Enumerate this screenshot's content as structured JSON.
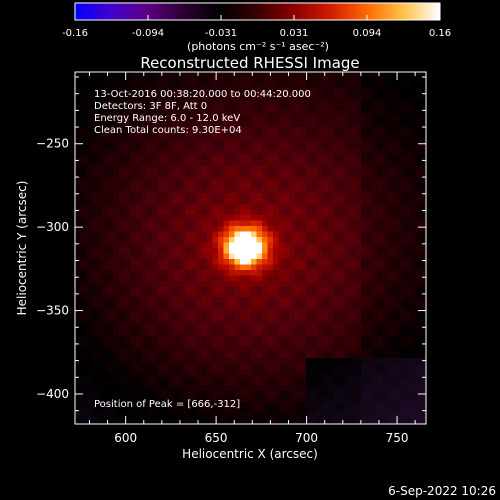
{
  "colorbar": {
    "ticks": [
      "-0.16",
      "-0.094",
      "-0.031",
      "0.031",
      "0.094",
      "0.16"
    ],
    "label": "(photons cm⁻² s⁻¹ asec⁻²)",
    "colors": [
      "#0000ff",
      "#4400cc",
      "#5a0080",
      "#2a0030",
      "#000000",
      "#3a0000",
      "#8a0000",
      "#d11a00",
      "#ff6a00",
      "#ffc24a",
      "#ffffff"
    ]
  },
  "footer": {
    "timestamp": "6-Sep-2022 10:26"
  },
  "chart_data": {
    "type": "heatmap",
    "title": "Reconstructed RHESSI Image",
    "xlabel": "Heliocentric X (arcsec)",
    "ylabel": "Heliocentric Y (arcsec)",
    "xlim": [
      572,
      766
    ],
    "ylim": [
      -418,
      -207
    ],
    "x_ticks": [
      600,
      650,
      700,
      750
    ],
    "y_ticks": [
      -250,
      -300,
      -350,
      -400
    ],
    "annotations": [
      "13-Oct-2016 00:38:20.000 to 00:44:20.000",
      "Detectors: 3F 8F, Att 0",
      "Energy Range: 6.0 - 12.0 keV",
      "Clean     Total counts: 9.30E+04"
    ],
    "peak_label": "Position of Peak = [666,-312]",
    "peak": {
      "x": 666,
      "y": -312,
      "value": 0.16
    },
    "value_range": [
      -0.16,
      0.16
    ]
  }
}
